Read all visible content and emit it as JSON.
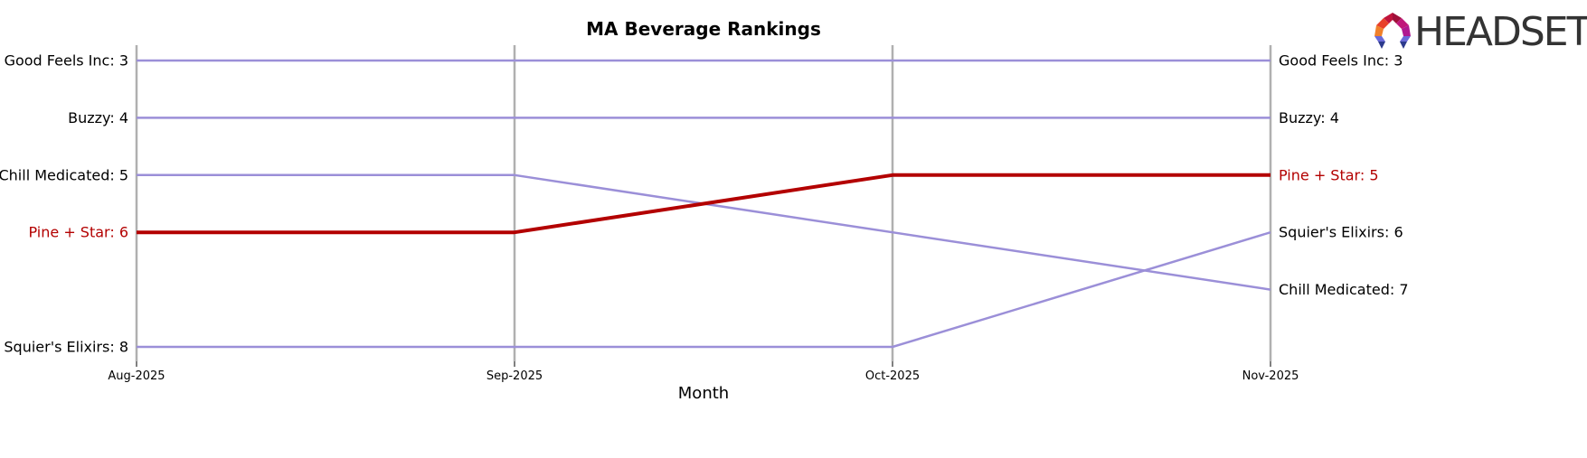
{
  "chart_data": {
    "type": "line",
    "title": "MA Beverage Rankings",
    "xlabel": "Month",
    "ylabel": "",
    "categories": [
      "Aug-2025",
      "Sep-2025",
      "Oct-2025",
      "Nov-2025"
    ],
    "y_inverted": true,
    "ylim": [
      8,
      3
    ],
    "grid": "vertical-only",
    "series": [
      {
        "name": "Good Feels Inc",
        "values": [
          3,
          3,
          3,
          3
        ],
        "color": "#9b8fd8",
        "highlight": false
      },
      {
        "name": "Buzzy",
        "values": [
          4,
          4,
          4,
          4
        ],
        "color": "#9b8fd8",
        "highlight": false
      },
      {
        "name": "Chill Medicated",
        "values": [
          5,
          5,
          6,
          7
        ],
        "color": "#9b8fd8",
        "highlight": false
      },
      {
        "name": "Pine + Star",
        "values": [
          6,
          6,
          5,
          5
        ],
        "color": "#b30000",
        "highlight": true
      },
      {
        "name": "Squier's Elixirs",
        "values": [
          8,
          8,
          8,
          6
        ],
        "color": "#9b8fd8",
        "highlight": false
      }
    ],
    "left_labels": [
      {
        "text": "Good Feels Inc: 3",
        "rank": 3,
        "highlight": false
      },
      {
        "text": "Buzzy: 4",
        "rank": 4,
        "highlight": false
      },
      {
        "text": "Chill Medicated: 5",
        "rank": 5,
        "highlight": false
      },
      {
        "text": "Pine + Star: 6",
        "rank": 6,
        "highlight": true
      },
      {
        "text": "Squier's Elixirs: 8",
        "rank": 8,
        "highlight": false
      }
    ],
    "right_labels": [
      {
        "text": "Good Feels Inc: 3",
        "rank": 3,
        "highlight": false
      },
      {
        "text": "Buzzy: 4",
        "rank": 4,
        "highlight": false
      },
      {
        "text": "Pine + Star: 5",
        "rank": 5,
        "highlight": true
      },
      {
        "text": "Squier's Elixirs: 6",
        "rank": 6,
        "highlight": false
      },
      {
        "text": "Chill Medicated: 7",
        "rank": 7,
        "highlight": false
      }
    ]
  },
  "logo": {
    "text": "HEADSET"
  },
  "colors": {
    "highlight": "#b30000",
    "line": "#9b8fd8",
    "grid": "#b0b0b0",
    "text": "#000000",
    "logo_text": "#333333"
  }
}
